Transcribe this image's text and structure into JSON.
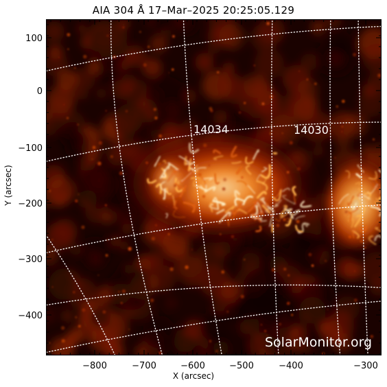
{
  "title": "AIA 304 Å 17–Mar–2025 20:25:05.129",
  "xlabel": "X (arcsec)",
  "ylabel": "Y (arcsec)",
  "watermark": "SolarMonitor.org",
  "x_ticks": [
    "−800",
    "−700",
    "−600",
    "−500",
    "−400",
    "−300"
  ],
  "y_ticks": [
    "100",
    "0",
    "−100",
    "−200",
    "−300",
    "−400"
  ],
  "regions": [
    {
      "label": "14034"
    },
    {
      "label": "14030"
    }
  ],
  "colors": {
    "background": "#1a0200",
    "mid": "#8a1d00",
    "bright": "#ff9a30",
    "hot": "#fff1c8",
    "grid": "#ffffff"
  }
}
